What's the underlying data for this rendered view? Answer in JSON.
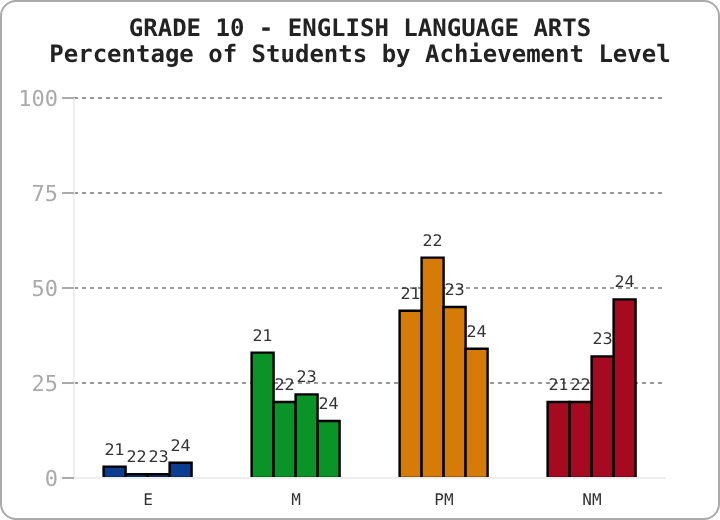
{
  "chart_data": {
    "type": "bar",
    "title": "GRADE 10 - ENGLISH LANGUAGE ARTS",
    "subtitle": "Percentage of Students by Achievement Level",
    "categories": [
      "E",
      "M",
      "PM",
      "NM"
    ],
    "series": [
      {
        "name": "21",
        "colors": [
          "#0a3d8f",
          "#0a9428",
          "#d77b08",
          "#a50a20"
        ],
        "values": [
          3,
          33,
          44,
          20
        ]
      },
      {
        "name": "22",
        "colors": [
          "#0a3d8f",
          "#0a9428",
          "#d77b08",
          "#a50a20"
        ],
        "values": [
          1,
          20,
          58,
          20
        ]
      },
      {
        "name": "23",
        "colors": [
          "#0a3d8f",
          "#0a9428",
          "#d77b08",
          "#a50a20"
        ],
        "values": [
          1,
          22,
          45,
          32
        ]
      },
      {
        "name": "24",
        "colors": [
          "#0a3d8f",
          "#0a9428",
          "#d77b08",
          "#a50a20"
        ],
        "values": [
          4,
          15,
          34,
          47
        ]
      }
    ],
    "ylim": [
      0,
      100
    ],
    "yticks": [
      0,
      25,
      50,
      75,
      100
    ],
    "grid": "y",
    "legend": false
  }
}
